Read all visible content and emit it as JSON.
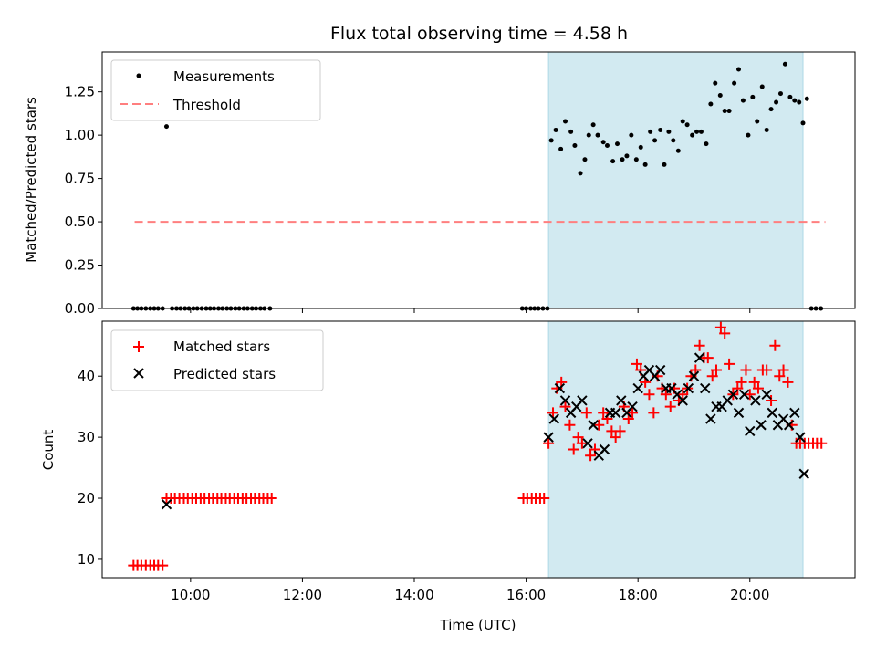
{
  "chart_data": [
    {
      "type": "scatter",
      "title": "Flux total observing time = 4.58 h",
      "xlabel": "",
      "ylabel": "Matched/Predicted stars",
      "xlim": [
        8.42,
        21.88
      ],
      "ylim": [
        0.0,
        1.48
      ],
      "yticks": [
        0.0,
        0.25,
        0.5,
        0.75,
        1.0,
        1.25
      ],
      "ytick_labels": [
        "0.00",
        "0.25",
        "0.50",
        "0.75",
        "1.00",
        "1.25"
      ],
      "xticks": [
        10,
        12,
        14,
        16,
        18,
        20
      ],
      "shaded_span": [
        16.4,
        20.95
      ],
      "shade_color": "#add8e6",
      "legend": [
        "Measurements",
        "Threshold"
      ],
      "legend_position": "top-left",
      "threshold": {
        "name": "Threshold",
        "value": 0.5,
        "x_range": [
          9.0,
          21.35
        ],
        "color": "#ff7f7f"
      },
      "series": [
        {
          "name": "Measurements",
          "color": "#000000",
          "marker": "dot",
          "x": [
            8.98,
            9.05,
            9.12,
            9.2,
            9.28,
            9.35,
            9.42,
            9.5,
            9.57,
            9.67,
            9.75,
            9.82,
            9.9,
            9.97,
            10.05,
            10.12,
            10.2,
            10.28,
            10.35,
            10.42,
            10.5,
            10.57,
            10.65,
            10.72,
            10.8,
            10.87,
            10.95,
            11.02,
            11.1,
            11.17,
            11.25,
            11.32,
            11.42,
            15.93,
            16.0,
            16.08,
            16.15,
            16.22,
            16.3,
            16.38,
            16.45,
            16.53,
            16.62,
            16.7,
            16.8,
            16.87,
            16.97,
            17.05,
            17.12,
            17.2,
            17.28,
            17.38,
            17.45,
            17.55,
            17.63,
            17.72,
            17.8,
            17.88,
            17.97,
            18.05,
            18.13,
            18.22,
            18.3,
            18.4,
            18.47,
            18.55,
            18.63,
            18.72,
            18.8,
            18.88,
            18.97,
            19.05,
            19.13,
            19.22,
            19.3,
            19.38,
            19.47,
            19.55,
            19.63,
            19.72,
            19.8,
            19.88,
            19.97,
            20.05,
            20.13,
            20.22,
            20.3,
            20.38,
            20.47,
            20.55,
            20.63,
            20.72,
            20.8,
            20.88,
            20.95,
            21.02,
            21.1,
            21.18,
            21.27
          ],
          "y": [
            0,
            0,
            0,
            0,
            0,
            0,
            0,
            0,
            1.05,
            0,
            0,
            0,
            0,
            0,
            0,
            0,
            0,
            0,
            0,
            0,
            0,
            0,
            0,
            0,
            0,
            0,
            0,
            0,
            0,
            0,
            0,
            0,
            0,
            0,
            0,
            0,
            0,
            0,
            0,
            0,
            0.97,
            1.03,
            0.92,
            1.08,
            1.02,
            0.94,
            0.78,
            0.86,
            1.0,
            1.06,
            1.0,
            0.96,
            0.94,
            0.85,
            0.95,
            0.86,
            0.88,
            1.0,
            0.86,
            0.93,
            0.83,
            1.02,
            0.97,
            1.03,
            0.83,
            1.02,
            0.97,
            0.91,
            1.08,
            1.06,
            1.0,
            1.02,
            1.02,
            0.95,
            1.18,
            1.3,
            1.23,
            1.14,
            1.14,
            1.3,
            1.38,
            1.2,
            1.0,
            1.22,
            1.08,
            1.28,
            1.03,
            1.15,
            1.19,
            1.24,
            1.41,
            1.22,
            1.2,
            1.19,
            1.07,
            1.21,
            0,
            0,
            0
          ]
        }
      ]
    },
    {
      "type": "scatter",
      "title": "",
      "xlabel": "Time (UTC)",
      "ylabel": "Count",
      "xlim": [
        8.42,
        21.88
      ],
      "ylim": [
        7.0,
        49.0
      ],
      "yticks": [
        10,
        20,
        30,
        40
      ],
      "ytick_labels": [
        "10",
        "20",
        "30",
        "40"
      ],
      "xticks": [
        10,
        12,
        14,
        16,
        18,
        20
      ],
      "xtick_labels": [
        "10:00",
        "12:00",
        "14:00",
        "16:00",
        "18:00",
        "20:00"
      ],
      "shaded_span": [
        16.4,
        20.95
      ],
      "shade_color": "#add8e6",
      "legend": [
        "Matched stars",
        "Predicted stars"
      ],
      "legend_position": "top-left",
      "series": [
        {
          "name": "Matched stars",
          "color": "#ff0000",
          "marker": "plus",
          "x": [
            8.98,
            9.05,
            9.12,
            9.2,
            9.28,
            9.35,
            9.42,
            9.5,
            9.57,
            9.65,
            9.72,
            9.8,
            9.88,
            9.95,
            10.03,
            10.1,
            10.18,
            10.25,
            10.33,
            10.4,
            10.48,
            10.55,
            10.63,
            10.7,
            10.78,
            10.85,
            10.93,
            11.0,
            11.08,
            11.15,
            11.23,
            11.3,
            11.38,
            11.45,
            15.95,
            16.02,
            16.1,
            16.17,
            16.25,
            16.32,
            16.4,
            16.48,
            16.55,
            16.63,
            16.7,
            16.78,
            16.85,
            16.93,
            17.0,
            17.08,
            17.15,
            17.23,
            17.3,
            17.38,
            17.45,
            17.53,
            17.6,
            17.68,
            17.75,
            17.83,
            17.9,
            17.98,
            18.05,
            18.13,
            18.2,
            18.28,
            18.35,
            18.43,
            18.5,
            18.58,
            18.65,
            18.73,
            18.8,
            18.88,
            18.95,
            19.03,
            19.1,
            19.18,
            19.25,
            19.33,
            19.4,
            19.48,
            19.55,
            19.63,
            19.7,
            19.78,
            19.85,
            19.93,
            20.0,
            20.08,
            20.15,
            20.23,
            20.3,
            20.38,
            20.45,
            20.53,
            20.6,
            20.68,
            20.75,
            20.83,
            20.9,
            20.98,
            21.05,
            21.13,
            21.2,
            21.28
          ],
          "y": [
            9,
            9,
            9,
            9,
            9,
            9,
            9,
            9,
            20,
            20,
            20,
            20,
            20,
            20,
            20,
            20,
            20,
            20,
            20,
            20,
            20,
            20,
            20,
            20,
            20,
            20,
            20,
            20,
            20,
            20,
            20,
            20,
            20,
            20,
            20,
            20,
            20,
            20,
            20,
            20,
            29,
            34,
            38,
            39,
            35,
            32,
            28,
            30,
            29,
            34,
            27,
            28,
            32,
            34,
            33,
            31,
            30,
            31,
            35,
            33,
            34,
            42,
            41,
            39,
            37,
            34,
            40,
            38,
            37,
            35,
            38,
            36,
            37,
            38,
            40,
            41,
            45,
            43,
            43,
            40,
            41,
            48,
            47,
            42,
            37,
            38,
            39,
            41,
            37,
            39,
            38,
            41,
            41,
            36,
            45,
            40,
            41,
            39,
            32,
            29,
            29,
            29,
            29,
            29,
            29,
            29
          ]
        },
        {
          "name": "Predicted stars",
          "color": "#000000",
          "marker": "x",
          "x": [
            9.57,
            16.4,
            16.5,
            16.6,
            16.7,
            16.8,
            16.9,
            17.0,
            17.1,
            17.2,
            17.3,
            17.4,
            17.5,
            17.6,
            17.7,
            17.8,
            17.9,
            18.0,
            18.1,
            18.2,
            18.3,
            18.4,
            18.5,
            18.6,
            18.7,
            18.8,
            18.9,
            19.0,
            19.1,
            19.2,
            19.3,
            19.4,
            19.5,
            19.6,
            19.7,
            19.8,
            19.9,
            20.0,
            20.1,
            20.2,
            20.3,
            20.4,
            20.5,
            20.6,
            20.7,
            20.8,
            20.9,
            20.97
          ],
          "y": [
            19,
            30,
            33,
            38,
            36,
            34,
            35,
            36,
            29,
            32,
            27,
            28,
            34,
            34,
            36,
            34,
            35,
            38,
            40,
            41,
            40,
            41,
            38,
            38,
            37,
            36,
            38,
            40,
            43,
            38,
            33,
            35,
            35,
            36,
            37,
            34,
            37,
            31,
            36,
            32,
            37,
            34,
            32,
            33,
            32,
            34,
            30,
            24
          ]
        }
      ]
    }
  ]
}
